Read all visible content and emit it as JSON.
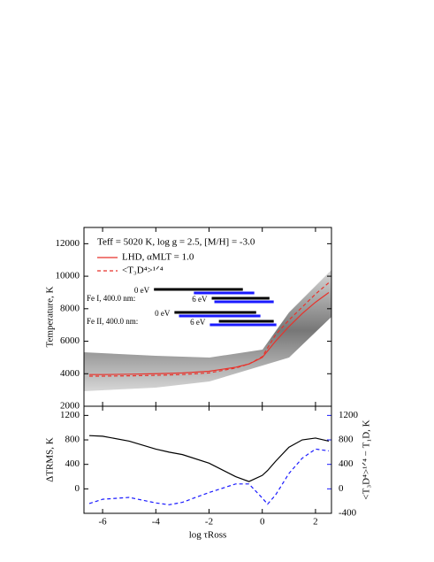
{
  "chart_data": [
    {
      "type": "line",
      "ylabel": "Temperature, K",
      "annotation": "Teff = 5020 K, log g = 2.5, [M/H] = -3.0",
      "xlim": [
        -6.7,
        2.6
      ],
      "xticks": [
        -6,
        -4,
        -2,
        0,
        2
      ],
      "ylim": [
        2000,
        13000
      ],
      "yticks": [
        2000,
        4000,
        6000,
        8000,
        10000,
        12000
      ],
      "x": [
        -6.5,
        -6,
        -5,
        -4,
        -3,
        -2,
        -1,
        -0.5,
        0,
        0.5,
        1,
        1.5,
        2,
        2.5
      ],
      "series": [
        {
          "name": "LHD, αMLT = 1.0",
          "color": "#e8322b",
          "dash": false,
          "values": [
            3950,
            3950,
            3970,
            4000,
            4050,
            4150,
            4400,
            4600,
            5000,
            6000,
            6900,
            7700,
            8400,
            9000
          ]
        },
        {
          "name": "<T₃D⁴>¹ᐟ⁴",
          "color": "#e8322b",
          "dash": true,
          "values": [
            3850,
            3850,
            3870,
            3900,
            3950,
            4050,
            4350,
            4600,
            5050,
            6400,
            7300,
            8100,
            8900,
            9600
          ]
        }
      ],
      "formation_ranges": [
        {
          "label": "Fe I, 400.0 nm:",
          "levels": [
            {
              "label": "0 eV",
              "ranges": [
                {
                  "color": "#000000",
                  "values": [
                    -4.07,
                    -0.73
                  ]
                },
                {
                  "color": "#1a1aff",
                  "values": [
                    -2.57,
                    -0.3
                  ]
                }
              ]
            },
            {
              "label": "6 eV",
              "ranges": [
                {
                  "color": "#000000",
                  "values": [
                    -1.9,
                    0.27
                  ]
                },
                {
                  "color": "#1a1aff",
                  "values": [
                    -1.8,
                    0.43
                  ]
                }
              ]
            }
          ]
        },
        {
          "label": "Fe II, 400.0 nm:",
          "levels": [
            {
              "label": "0 eV",
              "ranges": [
                {
                  "color": "#000000",
                  "values": [
                    -3.3,
                    -0.23
                  ]
                },
                {
                  "color": "#1a1aff",
                  "values": [
                    -3.13,
                    -0.07
                  ]
                }
              ]
            },
            {
              "label": "6 eV",
              "ranges": [
                {
                  "color": "#000000",
                  "values": [
                    -1.63,
                    0.43
                  ]
                },
                {
                  "color": "#1a1aff",
                  "values": [
                    -1.97,
                    0.53
                  ]
                }
              ]
            }
          ]
        }
      ]
    },
    {
      "type": "line",
      "xlabel": "log τRoss",
      "ylabel": "ΔTRMS, K",
      "y2label": "<T₃D⁴>¹ᐟ⁴ − T₁D, K",
      "xlim": [
        -6.7,
        2.6
      ],
      "xticks": [
        -6,
        -4,
        -2,
        0,
        2
      ],
      "ylim": [
        -400,
        1350
      ],
      "yticks": [
        0,
        400,
        800,
        1200
      ],
      "y2lim": [
        -400,
        1350
      ],
      "y2ticks": [
        -400,
        0,
        400,
        800,
        1200
      ],
      "x": [
        -6.5,
        -6,
        -5,
        -4,
        -3.5,
        -3,
        -2,
        -1,
        -0.5,
        0,
        0.2,
        0.5,
        1,
        1.5,
        2,
        2.5
      ],
      "series": [
        {
          "color": "#000000",
          "dash": false,
          "values": [
            870,
            860,
            780,
            650,
            600,
            560,
            420,
            200,
            120,
            220,
            300,
            450,
            680,
            800,
            830,
            780
          ]
        },
        {
          "color": "#1a1aff",
          "dash": true,
          "axis": "y2",
          "values": [
            -240,
            -170,
            -140,
            -230,
            -260,
            -220,
            -60,
            80,
            80,
            -150,
            -250,
            -100,
            250,
            500,
            650,
            620
          ]
        }
      ]
    }
  ]
}
